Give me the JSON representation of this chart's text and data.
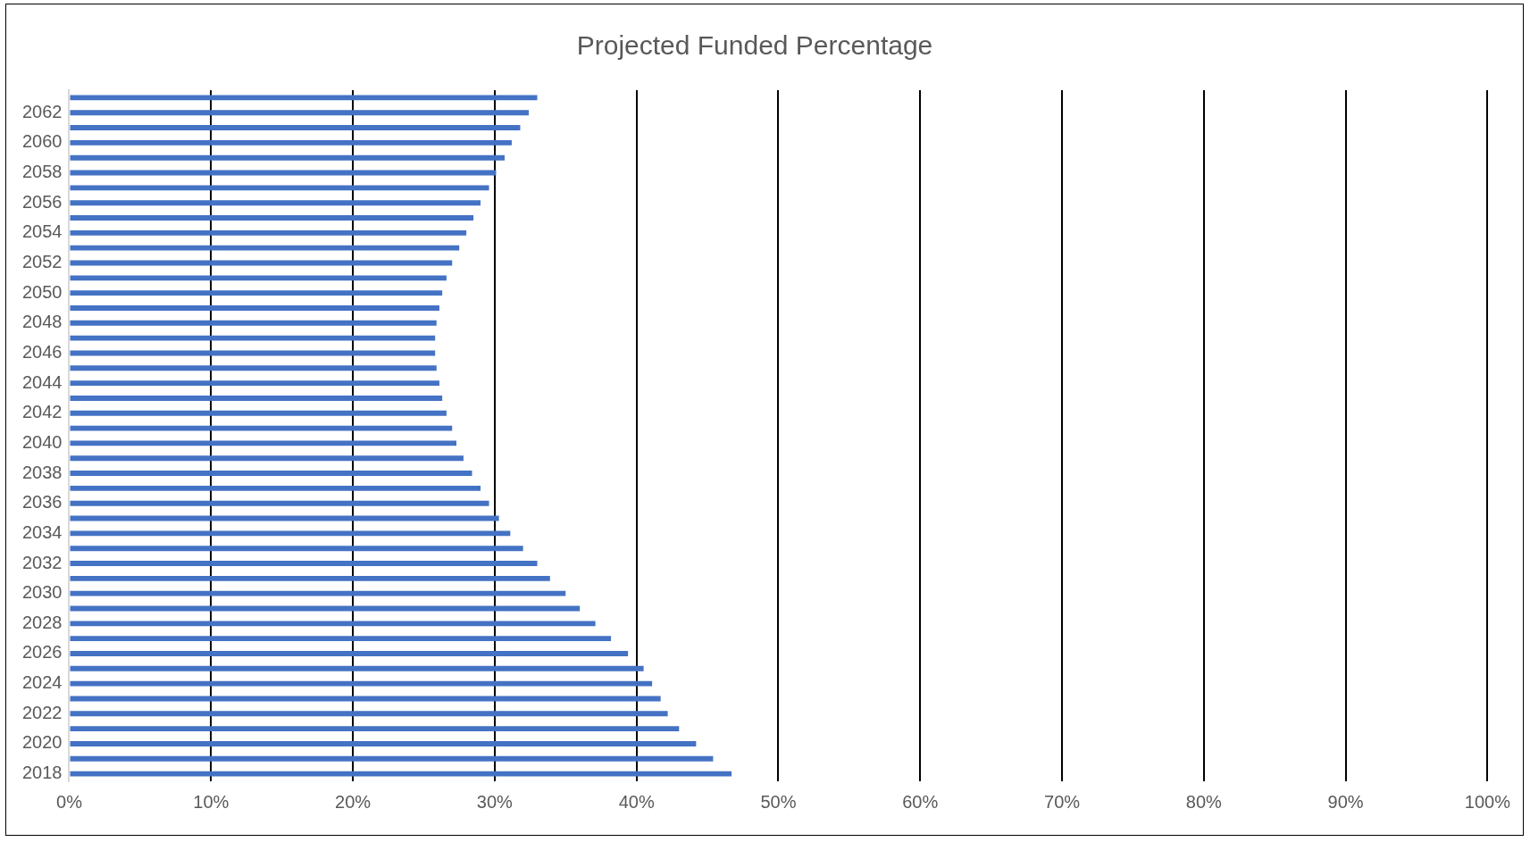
{
  "chart_data": {
    "type": "bar",
    "orientation": "horizontal",
    "title": "Projected Funded Percentage",
    "categories": [
      null,
      "2062",
      null,
      "2060",
      null,
      "2058",
      null,
      "2056",
      null,
      "2054",
      null,
      "2052",
      null,
      "2050",
      null,
      "2048",
      null,
      "2046",
      null,
      "2044",
      null,
      "2042",
      null,
      "2040",
      null,
      "2038",
      null,
      "2036",
      null,
      "2034",
      null,
      "2032",
      null,
      "2030",
      null,
      "2028",
      null,
      "2026",
      null,
      "2024",
      null,
      "2022",
      null,
      "2020",
      null,
      "2018"
    ],
    "values": [
      33.0,
      32.4,
      31.8,
      31.2,
      30.7,
      30.1,
      29.6,
      29.0,
      28.5,
      28.0,
      27.5,
      27.0,
      26.6,
      26.3,
      26.1,
      25.9,
      25.8,
      25.8,
      25.9,
      26.1,
      26.3,
      26.6,
      27.0,
      27.3,
      27.8,
      28.4,
      29.0,
      29.6,
      30.3,
      31.1,
      32.0,
      33.0,
      33.9,
      35.0,
      36.0,
      37.1,
      38.2,
      39.4,
      40.5,
      41.1,
      41.7,
      42.2,
      43.0,
      44.2,
      45.4,
      46.7
    ],
    "color": "#4472c4",
    "xlim": [
      0,
      100
    ],
    "xticks": [
      {
        "value": 0,
        "label": "0%"
      },
      {
        "value": 10,
        "label": "10%"
      },
      {
        "value": 20,
        "label": "20%"
      },
      {
        "value": 30,
        "label": "30%"
      },
      {
        "value": 40,
        "label": "40%"
      },
      {
        "value": 50,
        "label": "50%"
      },
      {
        "value": 60,
        "label": "60%"
      },
      {
        "value": 70,
        "label": "70%"
      },
      {
        "value": 80,
        "label": "80%"
      },
      {
        "value": 90,
        "label": "90%"
      },
      {
        "value": 100,
        "label": "100%"
      }
    ],
    "grid": "x",
    "legend": false
  }
}
